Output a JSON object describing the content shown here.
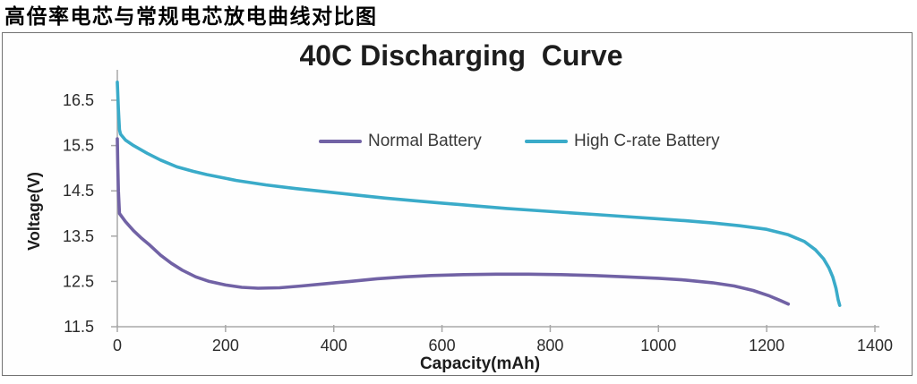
{
  "page": {
    "title": "高倍率电芯与常规电芯放电曲线对比图"
  },
  "chart": {
    "title": "40C Discharging  Curve",
    "xlabel": "Capacity(mAh)",
    "ylabel": "Voltage(V)",
    "legend": [
      {
        "label": "Normal Battery",
        "color": "#7162a5"
      },
      {
        "label": "High C-rate Battery",
        "color": "#3aabc9"
      }
    ]
  },
  "chart_data": {
    "type": "line",
    "title": "40C Discharging  Curve",
    "xlabel": "Capacity(mAh)",
    "ylabel": "Voltage(V)",
    "xlim": [
      0,
      1400
    ],
    "ylim": [
      11.5,
      16.5
    ],
    "x_ticks": [
      0,
      200,
      400,
      600,
      800,
      1000,
      1200,
      1400
    ],
    "y_ticks": [
      16.5,
      15.5,
      14.5,
      13.5,
      12.5,
      11.5
    ],
    "grid": false,
    "legend_position": "top-center-inside",
    "axis_color": "#a8a8a8",
    "series": [
      {
        "name": "Normal Battery",
        "color": "#7162a5",
        "points": [
          [
            0,
            15.65
          ],
          [
            1,
            15.0
          ],
          [
            2,
            14.5
          ],
          [
            4,
            14.0
          ],
          [
            15,
            13.82
          ],
          [
            30,
            13.62
          ],
          [
            45,
            13.45
          ],
          [
            60,
            13.3
          ],
          [
            80,
            13.08
          ],
          [
            100,
            12.9
          ],
          [
            120,
            12.75
          ],
          [
            145,
            12.6
          ],
          [
            170,
            12.5
          ],
          [
            200,
            12.42
          ],
          [
            230,
            12.37
          ],
          [
            260,
            12.35
          ],
          [
            300,
            12.36
          ],
          [
            340,
            12.4
          ],
          [
            385,
            12.45
          ],
          [
            430,
            12.5
          ],
          [
            480,
            12.56
          ],
          [
            530,
            12.6
          ],
          [
            580,
            12.63
          ],
          [
            640,
            12.65
          ],
          [
            700,
            12.66
          ],
          [
            760,
            12.66
          ],
          [
            820,
            12.65
          ],
          [
            880,
            12.63
          ],
          [
            940,
            12.6
          ],
          [
            1000,
            12.57
          ],
          [
            1050,
            12.53
          ],
          [
            1100,
            12.47
          ],
          [
            1140,
            12.4
          ],
          [
            1175,
            12.3
          ],
          [
            1205,
            12.18
          ],
          [
            1225,
            12.08
          ],
          [
            1240,
            12.0
          ]
        ]
      },
      {
        "name": "High C-rate Battery",
        "color": "#3aabc9",
        "points": [
          [
            0,
            16.9
          ],
          [
            2,
            16.3
          ],
          [
            4,
            15.85
          ],
          [
            6,
            15.75
          ],
          [
            15,
            15.62
          ],
          [
            30,
            15.5
          ],
          [
            55,
            15.33
          ],
          [
            80,
            15.18
          ],
          [
            110,
            15.03
          ],
          [
            140,
            14.93
          ],
          [
            165,
            14.86
          ],
          [
            220,
            14.73
          ],
          [
            275,
            14.63
          ],
          [
            330,
            14.55
          ],
          [
            385,
            14.48
          ],
          [
            440,
            14.41
          ],
          [
            495,
            14.34
          ],
          [
            550,
            14.28
          ],
          [
            600,
            14.23
          ],
          [
            660,
            14.17
          ],
          [
            720,
            14.11
          ],
          [
            770,
            14.07
          ],
          [
            830,
            14.02
          ],
          [
            880,
            13.98
          ],
          [
            940,
            13.93
          ],
          [
            990,
            13.89
          ],
          [
            1050,
            13.84
          ],
          [
            1100,
            13.79
          ],
          [
            1150,
            13.73
          ],
          [
            1200,
            13.65
          ],
          [
            1240,
            13.53
          ],
          [
            1270,
            13.38
          ],
          [
            1290,
            13.2
          ],
          [
            1305,
            13.0
          ],
          [
            1315,
            12.8
          ],
          [
            1322,
            12.6
          ],
          [
            1328,
            12.35
          ],
          [
            1332,
            12.1
          ],
          [
            1335,
            11.97
          ]
        ]
      }
    ]
  }
}
